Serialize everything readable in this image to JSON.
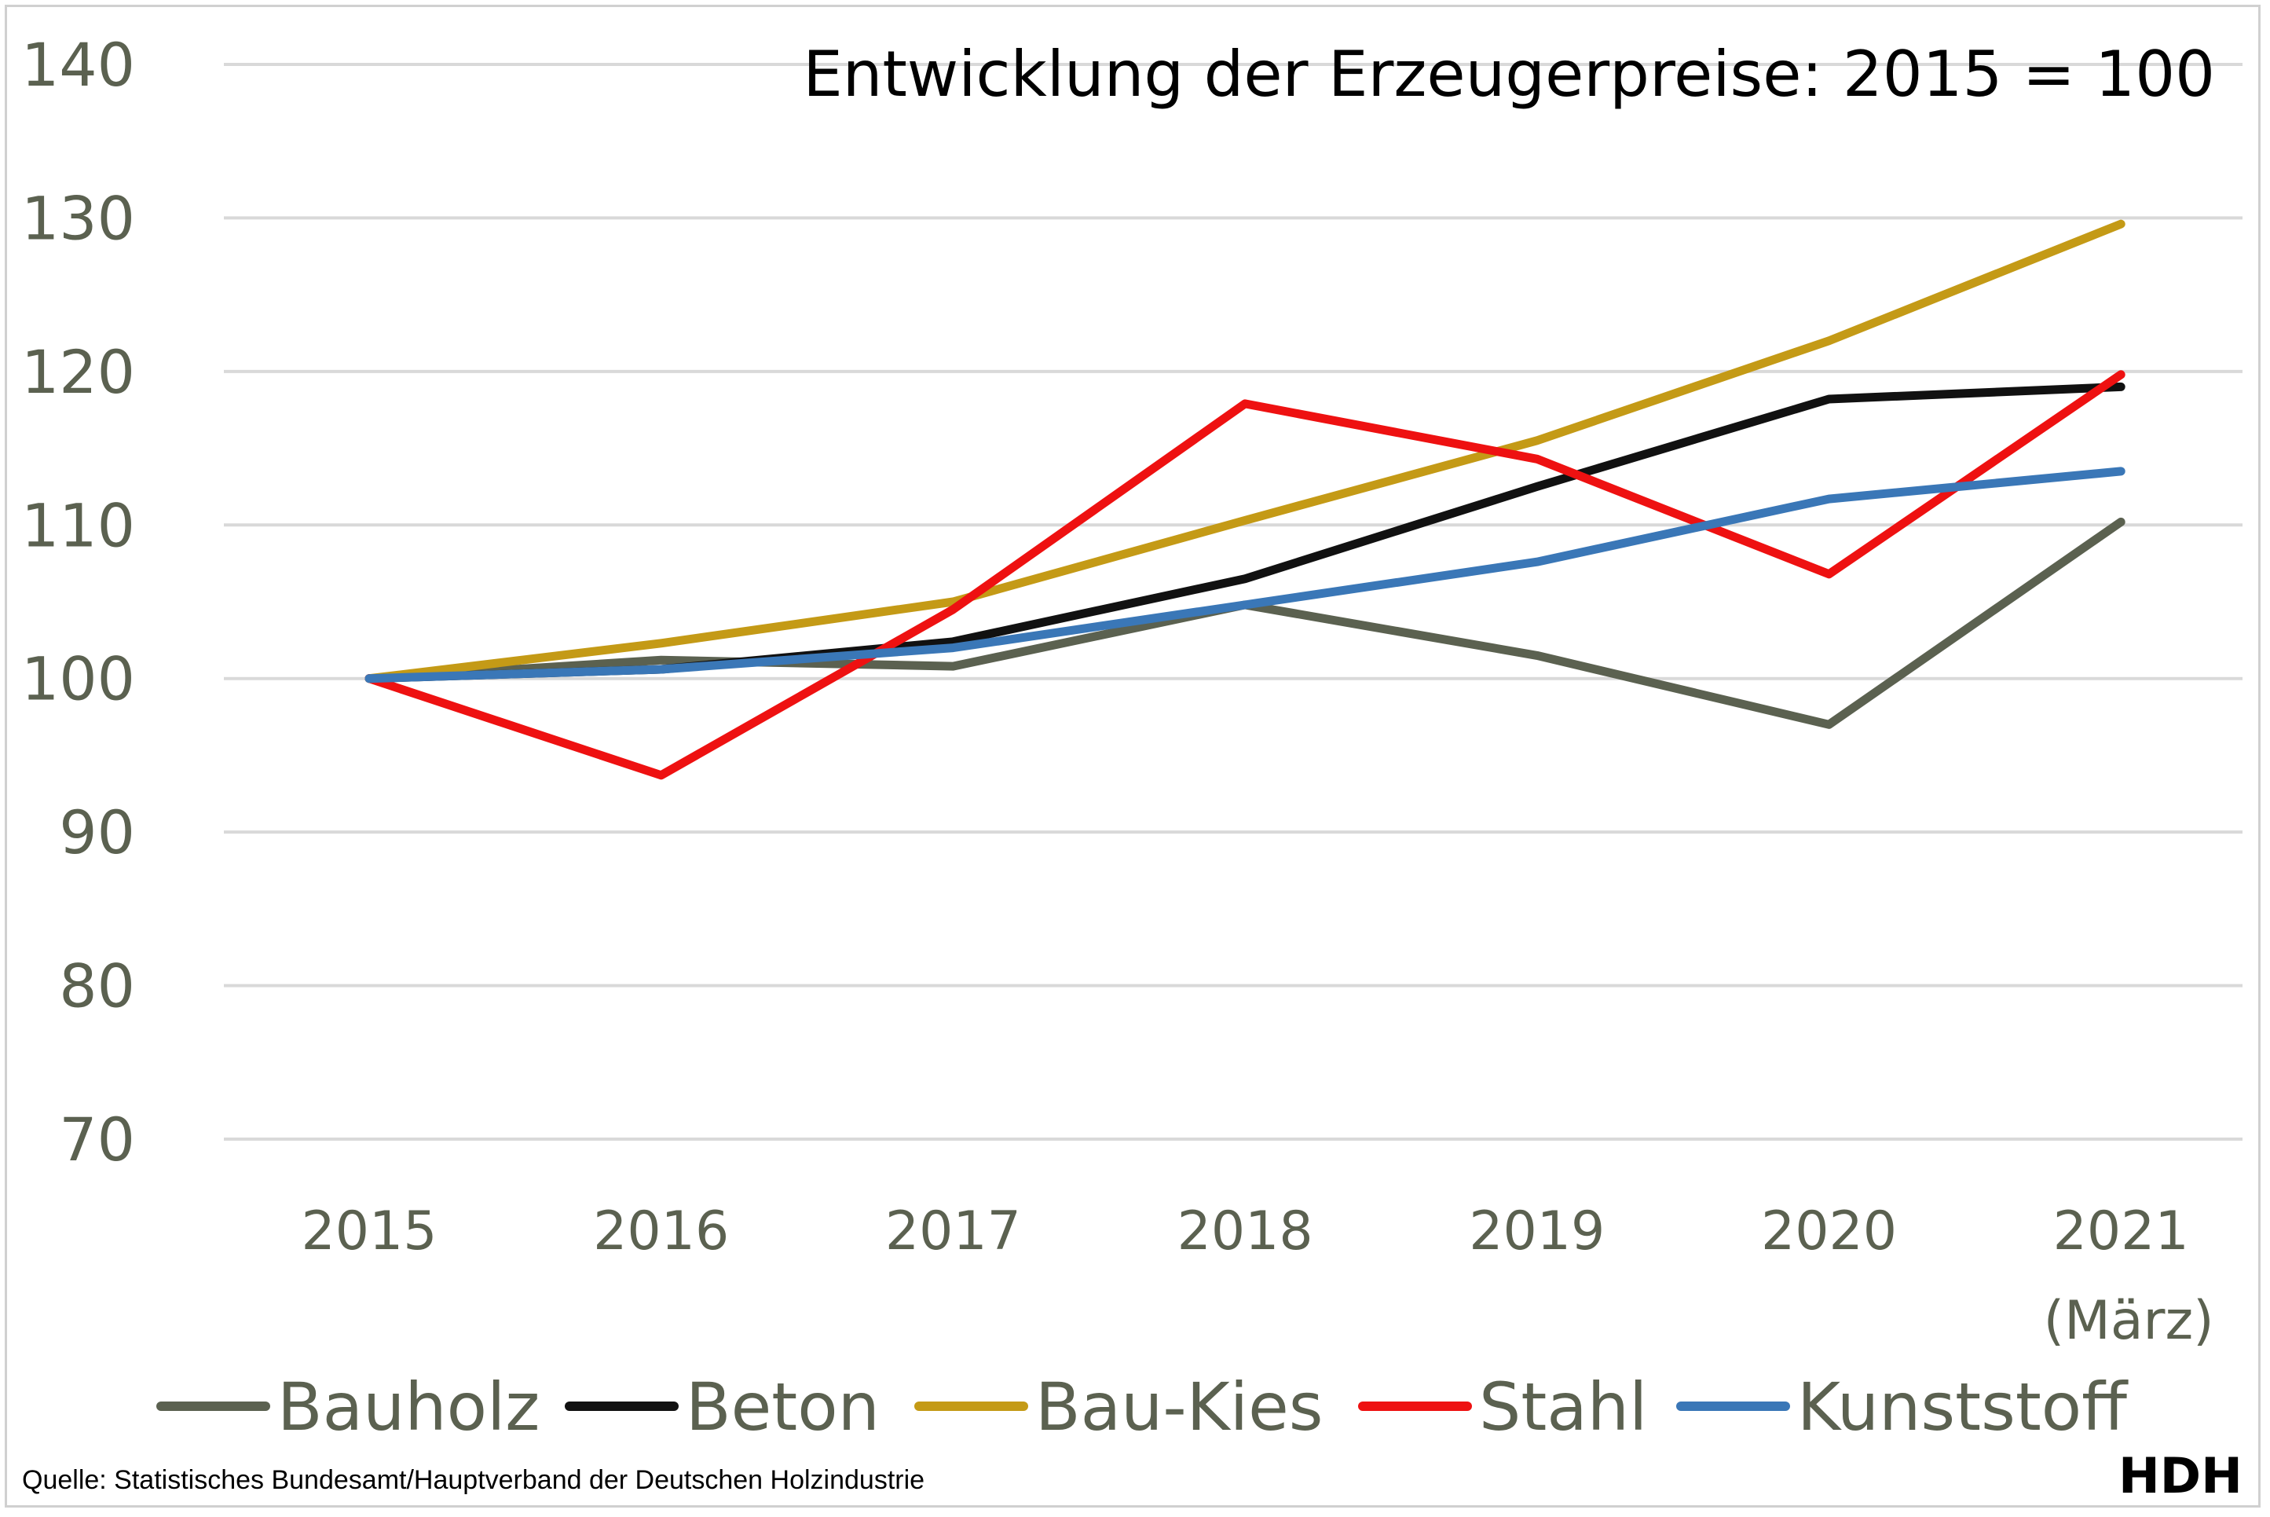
{
  "chart_data": {
    "type": "line",
    "title": "Entwicklung der Erzeugerpreise: 2015 = 100",
    "x": [
      "2015",
      "2016",
      "2017",
      "2018",
      "2019",
      "2020",
      "2021"
    ],
    "x_sublabels": [
      "",
      "",
      "",
      "",
      "",
      "",
      "(März)"
    ],
    "ylim": [
      70,
      140
    ],
    "yticks": [
      70,
      80,
      90,
      100,
      110,
      120,
      130,
      140
    ],
    "grid": true,
    "legend_position": "bottom",
    "series": [
      {
        "name": "Bauholz",
        "color": "#5b6150",
        "values": [
          100,
          101.2,
          100.8,
          104.8,
          101.5,
          97.0,
          110.2
        ]
      },
      {
        "name": "Beton",
        "color": "#111111",
        "values": [
          100,
          100.6,
          102.4,
          106.5,
          112.5,
          118.2,
          119.0
        ]
      },
      {
        "name": "Bau-Kies",
        "color": "#c49a16",
        "values": [
          100,
          102.3,
          105.0,
          110.3,
          115.5,
          122.0,
          129.6
        ]
      },
      {
        "name": "Stahl",
        "color": "#ee1111",
        "values": [
          100,
          93.7,
          104.5,
          117.9,
          114.3,
          106.8,
          119.8
        ]
      },
      {
        "name": "Kunststoff",
        "color": "#3a77b7",
        "values": [
          100,
          100.6,
          102.0,
          104.8,
          107.6,
          111.7,
          113.5
        ]
      }
    ]
  },
  "footer": {
    "source": "Quelle: Statistisches Bundesamt/Hauptverband der Deutschen Holzindustrie",
    "logo": "HDH"
  }
}
